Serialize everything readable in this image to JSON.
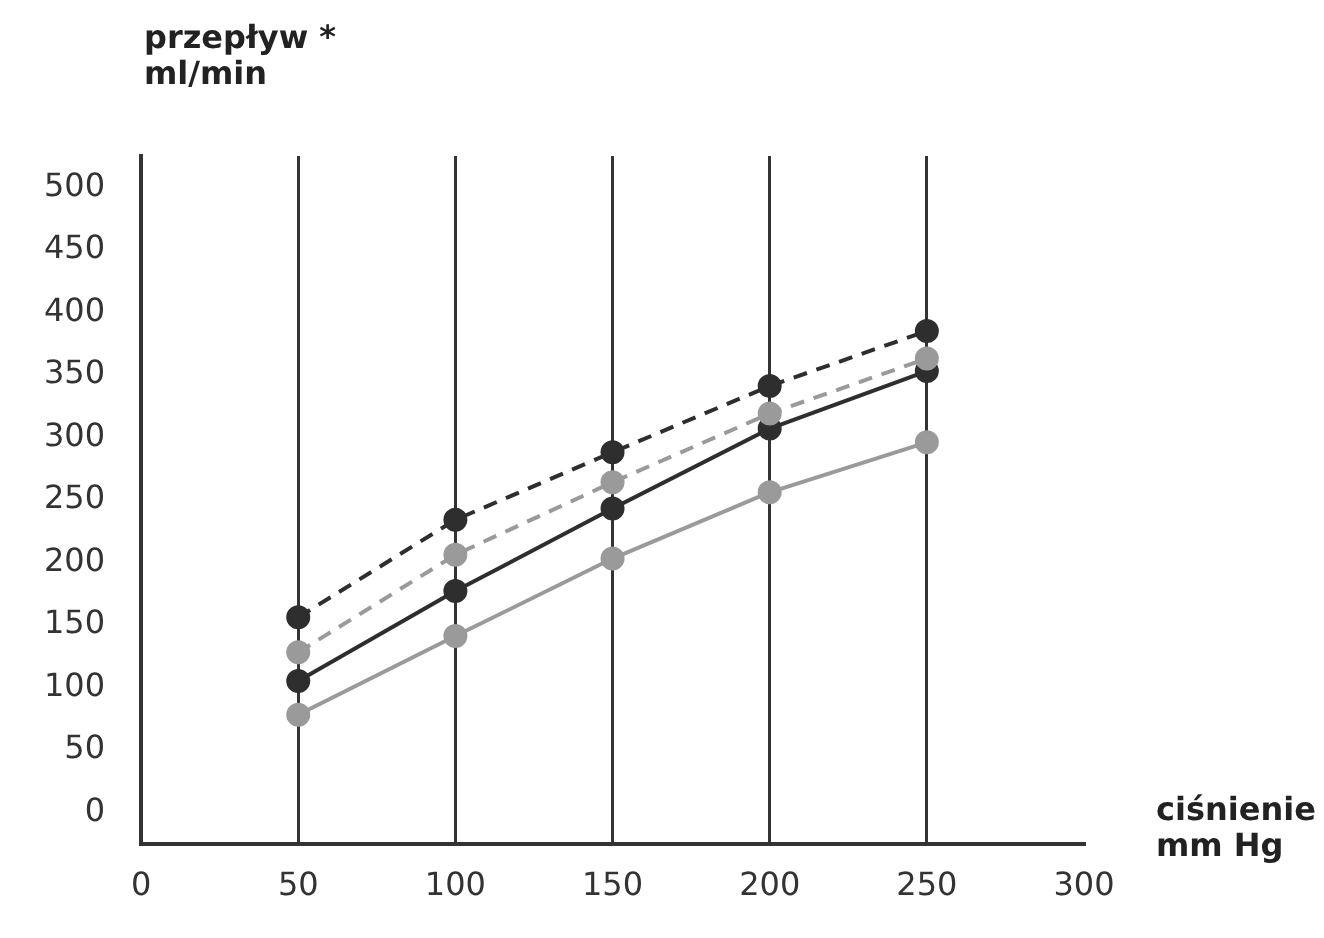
{
  "chart_data": {
    "type": "line",
    "ylabel": "przepływ *\nml/min",
    "xlabel": "ciśnienie\nmm Hg",
    "x": [
      50,
      100,
      150,
      200,
      250
    ],
    "series": [
      {
        "color": "#2e2e2e",
        "line_style": "dashed",
        "values": [
          156,
          234,
          288,
          341,
          385
        ]
      },
      {
        "color": "#9a9a9a",
        "line_style": "dashed",
        "values": [
          128,
          206,
          264,
          319,
          363
        ]
      },
      {
        "color": "#2e2e2e",
        "line_style": "solid",
        "values": [
          105,
          177,
          243,
          307,
          353
        ]
      },
      {
        "color": "#9a9a9a",
        "line_style": "solid",
        "values": [
          78,
          141,
          203,
          256,
          296
        ]
      }
    ],
    "xlim": [
      0,
      300
    ],
    "xticks": [
      0,
      50,
      100,
      150,
      200,
      250,
      300
    ],
    "ylim": [
      -25,
      525
    ],
    "yticks": [
      0,
      50,
      100,
      150,
      200,
      250,
      300,
      350,
      400,
      450,
      500
    ],
    "grid": "x",
    "marker": "circle",
    "legend": false
  }
}
